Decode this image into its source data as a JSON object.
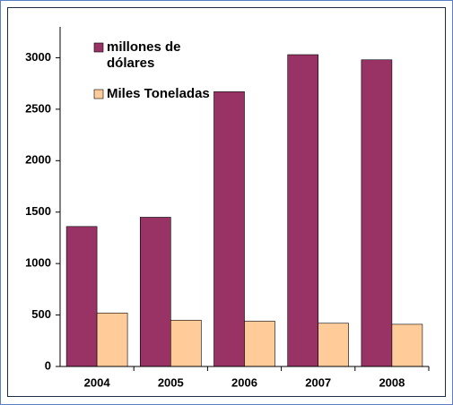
{
  "chart_data": {
    "type": "bar",
    "categories": [
      "2004",
      "2005",
      "2006",
      "2007",
      "2008"
    ],
    "series": [
      {
        "name": "millones de dólares",
        "color": "#993366",
        "values": [
          1360,
          1450,
          2670,
          3030,
          2980
        ]
      },
      {
        "name": "Miles Toneladas",
        "color": "#ffcc99",
        "values": [
          520,
          450,
          440,
          420,
          410
        ]
      }
    ],
    "ylim": [
      0,
      3300
    ],
    "yticks": [
      0,
      500,
      1000,
      1500,
      2000,
      2500,
      3000
    ],
    "legend": "upper-left"
  }
}
